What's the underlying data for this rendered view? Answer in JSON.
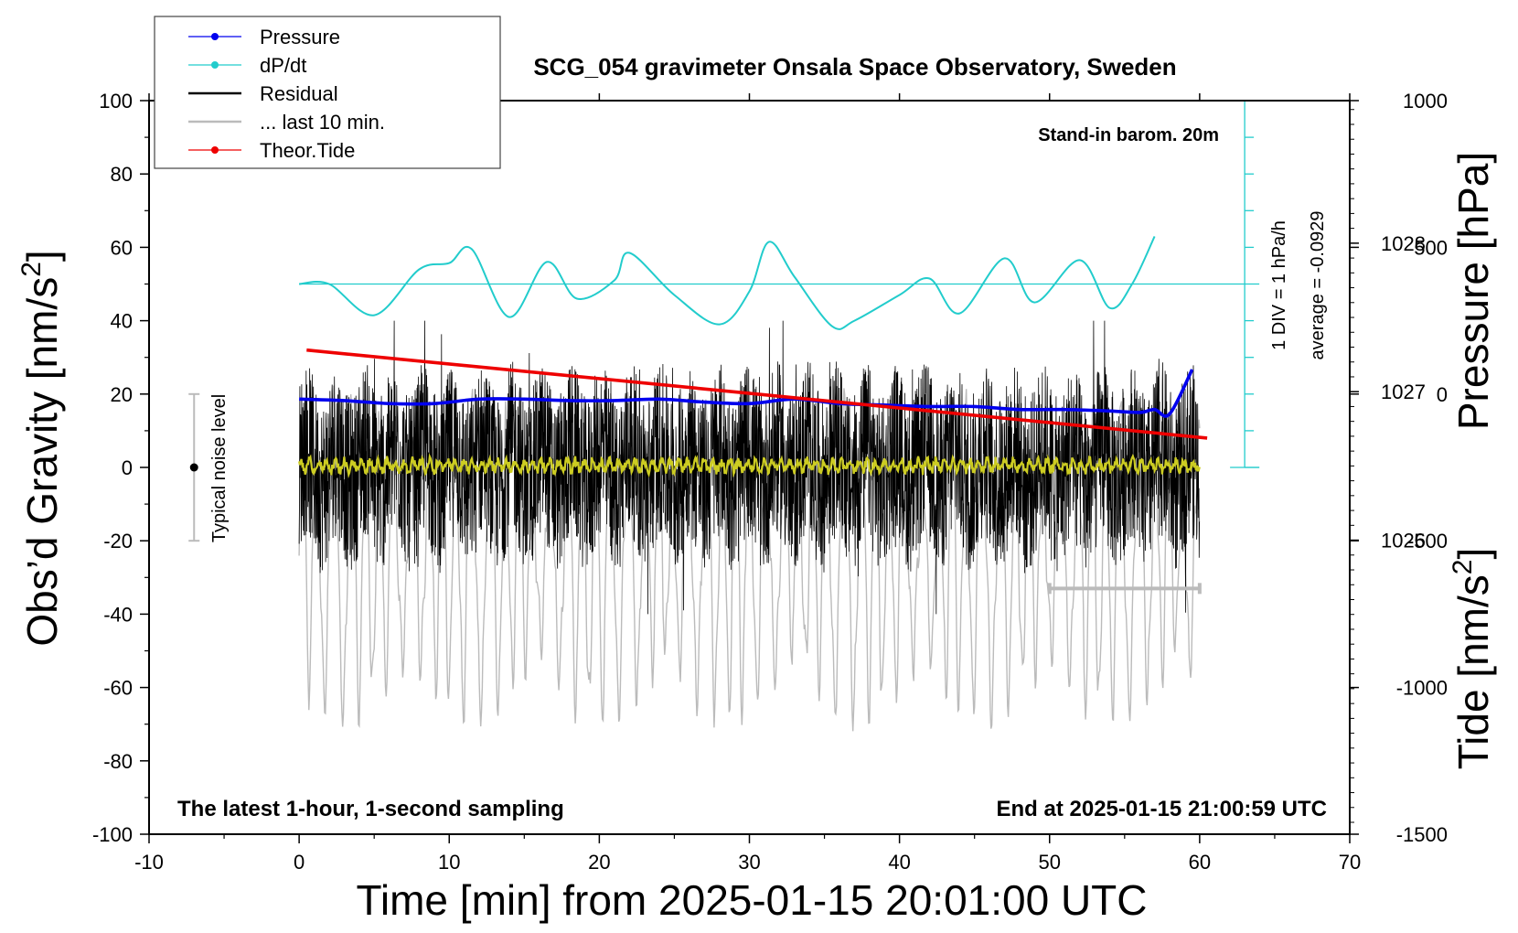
{
  "chart_data": {
    "type": "line",
    "title": "SCG_054 gravimeter Onsala Space Observatory, Sweden",
    "xlabel": "Time [min] from 2025-01-15 20:01:00 UTC",
    "ylabel_main": "Obs’d Gravity [nm/s",
    "ylabel_main_sup": "2",
    "ylabel_main_end": "]",
    "ylabel_pressure": "Pressure [hPa]",
    "ylabel_tide": "Tide [nm/s",
    "ylabel_tide_sup": "2",
    "ylabel_tide_end": "]",
    "xlim": [
      -10,
      70
    ],
    "ylim": [
      -100,
      100
    ],
    "x_ticks": [
      -10,
      0,
      10,
      20,
      30,
      40,
      50,
      60,
      70
    ],
    "x_tick_labels": [
      "-10",
      "0",
      "10",
      "20",
      "30",
      "40",
      "50",
      "60",
      "70"
    ],
    "y_ticks": [
      -100,
      -80,
      -60,
      -40,
      -20,
      0,
      20,
      40,
      60,
      80,
      100
    ],
    "y_tick_labels": [
      "-100",
      "-80",
      "-60",
      "-40",
      "-20",
      "0",
      "20",
      "40",
      "60",
      "80",
      "100"
    ],
    "pressure_ticks": [
      1026,
      1027,
      1028
    ],
    "pressure_tick_labels": [
      "1026",
      "1027",
      "1028"
    ],
    "pressure_ylim": [
      1024.02,
      1028.96
    ],
    "tide_ticks": [
      -1500,
      -1000,
      -500,
      0,
      500,
      1000
    ],
    "tide_tick_labels": [
      "-1500",
      "-1000",
      "-500",
      "0",
      "500",
      "1000"
    ],
    "tide_ylim": [
      -1500,
      1000
    ],
    "legend": [
      {
        "label": "Pressure",
        "color": "#0000ee",
        "marker": "dot"
      },
      {
        "label": "dP/dt",
        "color": "#22cccc",
        "marker": "dot"
      },
      {
        "label": "Residual",
        "color": "#000000",
        "marker": "line"
      },
      {
        "label": "... last 10 min.",
        "color": "#bbbbbb",
        "marker": "line"
      },
      {
        "label": "Theor.Tide",
        "color": "#ee0000",
        "marker": "dot"
      }
    ],
    "annotations": {
      "barom": "Stand-in barom. 20m",
      "div": "1 DIV = 1 hPa/h",
      "average": "average = -0.0929",
      "noise": "Typical noise level",
      "bottom_left": "The latest 1-hour, 1-second sampling",
      "bottom_right": "End at 2025-01-15 21:00:59 UTC"
    },
    "noise_bar": {
      "x": -7,
      "center": 0,
      "half_range": 20
    },
    "last10_bar": {
      "x_start": 50,
      "x_end": 60,
      "y": -33
    },
    "dpdt_axis": {
      "x": 63,
      "zero_y": 50
    },
    "series": [
      {
        "name": "Pressure",
        "axis": "pressure",
        "color": "#0000ee",
        "x": [
          0,
          3,
          6,
          9,
          12,
          15,
          18,
          21,
          24,
          27,
          30,
          33,
          36,
          39,
          42,
          45,
          48,
          51,
          54,
          56,
          57,
          58,
          59.5
        ],
        "values": [
          1026.95,
          1026.94,
          1026.92,
          1026.92,
          1026.95,
          1026.95,
          1026.94,
          1026.94,
          1026.95,
          1026.93,
          1026.92,
          1026.95,
          1026.92,
          1026.91,
          1026.9,
          1026.9,
          1026.88,
          1026.88,
          1026.87,
          1026.86,
          1026.88,
          1026.85,
          1027.15
        ]
      },
      {
        "name": "dP/dt",
        "axis": "primary",
        "color": "#22cccc",
        "x": [
          0,
          2,
          5,
          8,
          10,
          11.5,
          14,
          16.5,
          18.5,
          21,
          22,
          25,
          28,
          30,
          31.3,
          33,
          35.5,
          37,
          40,
          42,
          44,
          47,
          49,
          52,
          54,
          55.5,
          57
        ],
        "values": [
          50,
          50,
          41.5,
          54,
          55.7,
          59.5,
          41,
          56,
          46,
          51,
          58.5,
          47,
          39,
          48,
          61.5,
          52,
          38.5,
          40,
          47,
          51.5,
          42,
          57,
          45,
          56.5,
          43.5,
          50,
          63
        ]
      },
      {
        "name": "Theor.Tide",
        "axis": "tide",
        "color": "#ee0000",
        "x": [
          0.5,
          60.5
        ],
        "values": [
          150,
          -150
        ]
      }
    ]
  }
}
